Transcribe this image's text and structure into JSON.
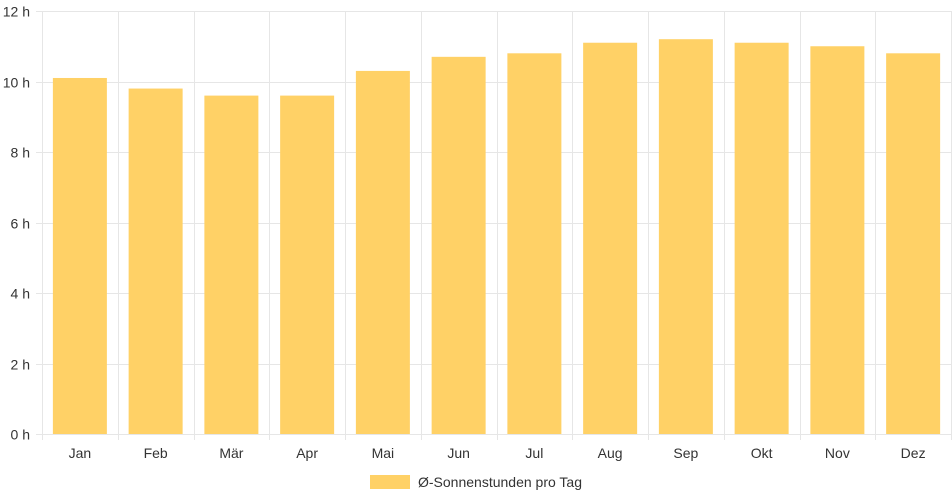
{
  "chart_data": {
    "type": "bar",
    "categories": [
      "Jan",
      "Feb",
      "Mär",
      "Apr",
      "Mai",
      "Jun",
      "Jul",
      "Aug",
      "Sep",
      "Okt",
      "Nov",
      "Dez"
    ],
    "series": [
      {
        "name": "Ø-Sonnenstunden pro Tag",
        "values": [
          10.1,
          9.8,
          9.6,
          9.6,
          10.3,
          10.7,
          10.8,
          11.1,
          11.2,
          11.1,
          11.0,
          10.8
        ],
        "color": "#ffd166"
      }
    ],
    "yticks": [
      "0 h",
      "2 h",
      "4 h",
      "6 h",
      "8 h",
      "10 h",
      "12 h"
    ],
    "ylim": [
      0,
      12
    ],
    "title": "",
    "xlabel": "",
    "ylabel": "",
    "grid": true,
    "legend_position": "bottom-center"
  },
  "colors": {
    "bar": "#ffd166",
    "grid": "#e6e6e6",
    "axis_text": "#333333"
  }
}
